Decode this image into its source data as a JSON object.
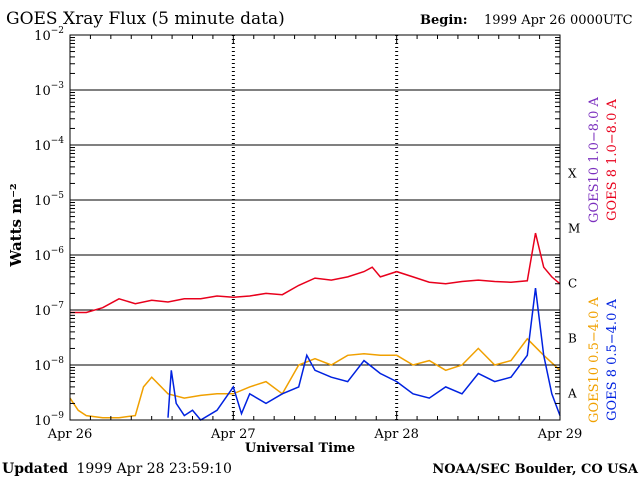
{
  "header": {
    "title": "GOES Xray Flux (5 minute data)",
    "begin_label": "Begin:",
    "begin_value": "1999 Apr 26 0000UTC"
  },
  "footer": {
    "updated_label": "Updated",
    "updated_value": "1999 Apr 28 23:59:10",
    "credit": "NOAA/SEC Boulder, CO USA"
  },
  "colors": {
    "goes10_long": "#7B2FBE",
    "goes8_long": "#E8001C",
    "goes10_short": "#F0A000",
    "goes8_short": "#0022E0",
    "axis": "#000000"
  },
  "chart_data": {
    "type": "line",
    "title": "GOES Xray Flux (5 minute data)",
    "xlabel": "Universal Time",
    "ylabel": "Watts m⁻²",
    "y_scale": "log",
    "ylim": [
      1e-09,
      0.01
    ],
    "xlim": [
      "1999-04-26 00:00",
      "1999-04-29 00:00"
    ],
    "x_ticks": [
      "Apr 26",
      "Apr 27",
      "Apr 28",
      "Apr 29"
    ],
    "y_ticks": [
      {
        "mant": "10",
        "exp": "−9"
      },
      {
        "mant": "10",
        "exp": "−8"
      },
      {
        "mant": "10",
        "exp": "−7"
      },
      {
        "mant": "10",
        "exp": "−6"
      },
      {
        "mant": "10",
        "exp": "−5"
      },
      {
        "mant": "10",
        "exp": "−4"
      },
      {
        "mant": "10",
        "exp": "−3"
      },
      {
        "mant": "10",
        "exp": "−2"
      }
    ],
    "flare_classes": [
      "A",
      "B",
      "C",
      "M",
      "X"
    ],
    "grid": true,
    "legend_position": "right",
    "series": [
      {
        "name": "GOES10 1.0−8.0 A",
        "color_key": "goes10_long",
        "x": [],
        "y": []
      },
      {
        "name": "GOES 8 1.0−8.0 A",
        "color_key": "goes8_long",
        "x": [
          0,
          0.1,
          0.2,
          0.3,
          0.4,
          0.5,
          0.6,
          0.7,
          0.8,
          0.9,
          1.0,
          1.1,
          1.2,
          1.3,
          1.4,
          1.5,
          1.6,
          1.7,
          1.8,
          1.85,
          1.9,
          2.0,
          2.1,
          2.2,
          2.3,
          2.4,
          2.5,
          2.6,
          2.7,
          2.8,
          2.85,
          2.9,
          2.95,
          3.0
        ],
        "y": [
          9e-08,
          9e-08,
          1.1e-07,
          1.6e-07,
          1.3e-07,
          1.5e-07,
          1.4e-07,
          1.6e-07,
          1.6e-07,
          1.8e-07,
          1.7e-07,
          1.8e-07,
          2e-07,
          1.9e-07,
          2.8e-07,
          3.8e-07,
          3.5e-07,
          4e-07,
          5e-07,
          6e-07,
          4e-07,
          5e-07,
          4e-07,
          3.2e-07,
          3e-07,
          3.3e-07,
          3.5e-07,
          3.3e-07,
          3.2e-07,
          3.4e-07,
          2.5e-06,
          6e-07,
          4e-07,
          3e-07
        ]
      },
      {
        "name": "GOES10 0.5−4.0 A",
        "color_key": "goes10_short",
        "x": [
          0,
          0.05,
          0.1,
          0.2,
          0.3,
          0.4,
          0.45,
          0.5,
          0.6,
          0.7,
          0.8,
          0.9,
          1.0,
          1.1,
          1.2,
          1.3,
          1.4,
          1.5,
          1.6,
          1.7,
          1.8,
          1.9,
          2.0,
          2.1,
          2.2,
          2.3,
          2.4,
          2.5,
          2.6,
          2.7,
          2.8,
          2.9,
          3.0
        ],
        "y": [
          2.5e-09,
          1.5e-09,
          1.2e-09,
          1.1e-09,
          1.1e-09,
          1.2e-09,
          4e-09,
          6e-09,
          3e-09,
          2.5e-09,
          2.8e-09,
          3e-09,
          3e-09,
          4e-09,
          5e-09,
          3e-09,
          1e-08,
          1.3e-08,
          1e-08,
          1.5e-08,
          1.6e-08,
          1.5e-08,
          1.5e-08,
          1e-08,
          1.2e-08,
          8e-09,
          1e-08,
          2e-08,
          1e-08,
          1.2e-08,
          3e-08,
          1.5e-08,
          8e-09
        ]
      },
      {
        "name": "GOES 8 0.5−4.0 A",
        "color_key": "goes8_short",
        "x": [
          0.6,
          0.62,
          0.65,
          0.7,
          0.75,
          0.8,
          0.9,
          1.0,
          1.05,
          1.1,
          1.2,
          1.3,
          1.4,
          1.45,
          1.5,
          1.6,
          1.7,
          1.8,
          1.9,
          2.0,
          2.1,
          2.2,
          2.3,
          2.4,
          2.5,
          2.6,
          2.7,
          2.8,
          2.85,
          2.9,
          2.95,
          3.0
        ],
        "y": [
          1.1e-09,
          8e-09,
          2e-09,
          1.2e-09,
          1.5e-09,
          1e-09,
          1.5e-09,
          4e-09,
          1.3e-09,
          3e-09,
          2e-09,
          3e-09,
          4e-09,
          1.5e-08,
          8e-09,
          6e-09,
          5e-09,
          1.2e-08,
          7e-09,
          5e-09,
          3e-09,
          2.5e-09,
          4e-09,
          3e-09,
          7e-09,
          5e-09,
          6e-09,
          1.5e-08,
          2.5e-07,
          1.5e-08,
          3e-09,
          1.2e-09
        ]
      }
    ]
  }
}
